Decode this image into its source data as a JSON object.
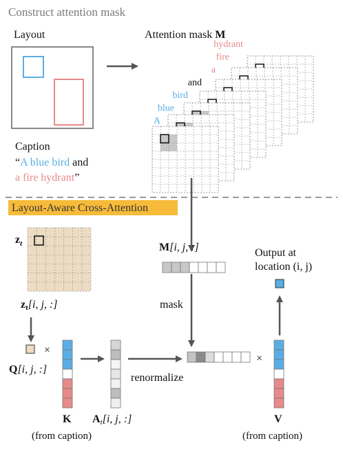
{
  "top": {
    "heading": "Construct attention mask",
    "layout_label": "Layout",
    "mask_label_prefix": "Attention mask ",
    "mask_label_symbol": "M",
    "caption_label": "Caption",
    "caption_open_quote": "“",
    "caption_part1": "A blue bird",
    "caption_and": " and",
    "caption_part2": "a fire hydrant",
    "caption_close_quote": "”",
    "tokens": [
      "A",
      "blue",
      "bird",
      "and",
      "a",
      "fire",
      "hydrant"
    ]
  },
  "bottom": {
    "heading": "Layout-Aware Cross-Attention",
    "z_label": "z",
    "z_sub": "t",
    "z_index_label": "[i, j, :]",
    "m_index_label": "[i, j, :]",
    "m_symbol": "M",
    "q_symbol": "Q",
    "q_index_label": "[i, j, :]",
    "times": "×",
    "k_label": "K",
    "a_label": "A",
    "a_sub": "t",
    "a_index_label": "[i, j, :]",
    "v_label": "V",
    "mask_word": "mask",
    "renormalize_word": "renormalize",
    "output_line1": "Output at",
    "output_line2": "location (i, j)",
    "k_source": "(from caption)",
    "v_source": "(from caption)"
  },
  "colors": {
    "blue": "#5aaee6",
    "red": "#e8898a",
    "gray_text": "#7a7a7a",
    "highlight": "#f7bb3a",
    "latent": "#eddcc3",
    "mask_fill": "#c8c8c8"
  }
}
